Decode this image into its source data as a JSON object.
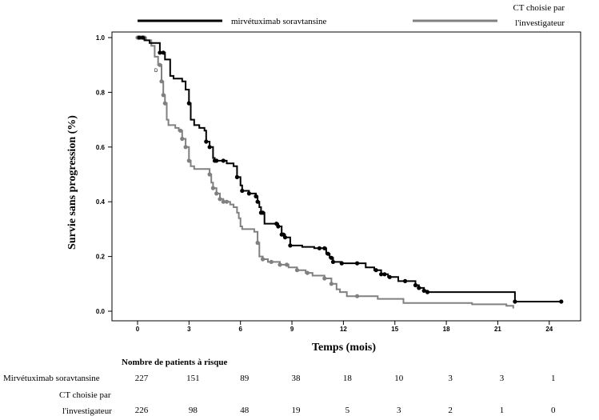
{
  "chart_data": {
    "type": "line",
    "step": true,
    "xlabel": "Temps (mois)",
    "ylabel": "Survie sans progression (%)",
    "xlim": [
      -1,
      25
    ],
    "ylim": [
      0,
      1.0
    ],
    "xticks": [
      "0",
      "3",
      "6",
      "9",
      "12",
      "15",
      "18",
      "21",
      "24"
    ],
    "yticks": [
      "0.0",
      "0.2",
      "0.4",
      "0.6",
      "0.8",
      "1.0"
    ],
    "legend_position": "top",
    "series": [
      {
        "name": "mirvétuximab soravtansine",
        "color": "#000000",
        "points": [
          [
            0,
            1.0
          ],
          [
            0.4,
            0.99
          ],
          [
            0.7,
            0.98
          ],
          [
            1.3,
            0.97
          ],
          [
            1.3,
            0.945
          ],
          [
            1.6,
            0.92
          ],
          [
            1.9,
            0.86
          ],
          [
            2.1,
            0.85
          ],
          [
            2.6,
            0.84
          ],
          [
            2.8,
            0.81
          ],
          [
            3.0,
            0.76
          ],
          [
            3.1,
            0.7
          ],
          [
            3.3,
            0.68
          ],
          [
            3.6,
            0.67
          ],
          [
            3.9,
            0.66
          ],
          [
            4.0,
            0.62
          ],
          [
            4.2,
            0.6
          ],
          [
            4.4,
            0.56
          ],
          [
            4.5,
            0.55
          ],
          [
            5.2,
            0.54
          ],
          [
            5.6,
            0.53
          ],
          [
            5.8,
            0.49
          ],
          [
            6.0,
            0.46
          ],
          [
            6.1,
            0.44
          ],
          [
            6.5,
            0.43
          ],
          [
            6.9,
            0.42
          ],
          [
            7.0,
            0.4
          ],
          [
            7.1,
            0.38
          ],
          [
            7.2,
            0.36
          ],
          [
            7.4,
            0.32
          ],
          [
            8.2,
            0.31
          ],
          [
            8.4,
            0.28
          ],
          [
            8.6,
            0.27
          ],
          [
            8.9,
            0.24
          ],
          [
            9.6,
            0.235
          ],
          [
            10.3,
            0.23
          ],
          [
            11.0,
            0.21
          ],
          [
            11.2,
            0.195
          ],
          [
            11.4,
            0.18
          ],
          [
            11.9,
            0.175
          ],
          [
            13.3,
            0.16
          ],
          [
            13.8,
            0.15
          ],
          [
            14.2,
            0.135
          ],
          [
            14.6,
            0.125
          ],
          [
            15.2,
            0.11
          ],
          [
            16.2,
            0.095
          ],
          [
            16.4,
            0.085
          ],
          [
            16.7,
            0.075
          ],
          [
            16.9,
            0.07
          ],
          [
            22.0,
            0.07
          ],
          [
            22.0,
            0.035
          ],
          [
            24.7,
            0.035
          ]
        ],
        "censor_x": [
          0.1,
          0.3,
          1.3,
          1.5,
          3.0,
          4.0,
          4.2,
          4.5,
          4.6,
          5.0,
          5.8,
          6.1,
          6.5,
          6.9,
          7.0,
          7.2,
          7.3,
          8.1,
          8.2,
          8.4,
          8.5,
          8.6,
          8.9,
          10.6,
          10.9,
          11.1,
          11.3,
          11.4,
          11.9,
          12.8,
          13.9,
          14.2,
          14.4,
          14.7,
          15.6,
          16.2,
          16.4,
          16.7,
          16.9,
          22.0,
          24.7
        ]
      },
      {
        "name": "CT choisie par l'investigateur",
        "color": "#808080",
        "points": [
          [
            0,
            1.0
          ],
          [
            0.5,
            0.99
          ],
          [
            0.8,
            0.97
          ],
          [
            1.0,
            0.93
          ],
          [
            1.2,
            0.9
          ],
          [
            1.4,
            0.84
          ],
          [
            1.5,
            0.79
          ],
          [
            1.6,
            0.76
          ],
          [
            1.7,
            0.7
          ],
          [
            1.8,
            0.68
          ],
          [
            2.2,
            0.67
          ],
          [
            2.4,
            0.66
          ],
          [
            2.6,
            0.63
          ],
          [
            2.8,
            0.6
          ],
          [
            3.0,
            0.55
          ],
          [
            3.1,
            0.53
          ],
          [
            3.3,
            0.52
          ],
          [
            4.2,
            0.5
          ],
          [
            4.3,
            0.47
          ],
          [
            4.4,
            0.45
          ],
          [
            4.6,
            0.43
          ],
          [
            4.8,
            0.41
          ],
          [
            5.0,
            0.4
          ],
          [
            5.4,
            0.39
          ],
          [
            5.6,
            0.38
          ],
          [
            5.8,
            0.36
          ],
          [
            5.9,
            0.34
          ],
          [
            6.0,
            0.31
          ],
          [
            6.1,
            0.3
          ],
          [
            6.8,
            0.29
          ],
          [
            7.0,
            0.25
          ],
          [
            7.1,
            0.2
          ],
          [
            7.3,
            0.19
          ],
          [
            7.6,
            0.18
          ],
          [
            8.3,
            0.17
          ],
          [
            8.8,
            0.16
          ],
          [
            9.3,
            0.15
          ],
          [
            9.8,
            0.14
          ],
          [
            10.2,
            0.13
          ],
          [
            10.9,
            0.12
          ],
          [
            11.3,
            0.1
          ],
          [
            11.6,
            0.08
          ],
          [
            11.8,
            0.07
          ],
          [
            12.2,
            0.055
          ],
          [
            14.0,
            0.045
          ],
          [
            15.5,
            0.03
          ],
          [
            19.5,
            0.025
          ],
          [
            21.5,
            0.02
          ],
          [
            21.9,
            0.01
          ]
        ],
        "censor_x": [
          0,
          0.2,
          0.4,
          1.3,
          1.4,
          1.5,
          1.6,
          2.5,
          2.6,
          2.8,
          3.0,
          4.2,
          4.4,
          4.6,
          4.8,
          5.0,
          5.2,
          7.0,
          7.3,
          7.8,
          8.3,
          8.7,
          9.3,
          9.9,
          10.9,
          11.3,
          12.8
        ]
      }
    ],
    "risk_table": {
      "title": "Nombre de patients à risque",
      "rows": [
        {
          "label": "Mirvétuximab soravtansine",
          "values": [
            "227",
            "151",
            "89",
            "38",
            "18",
            "10",
            "3",
            "3",
            "1"
          ]
        },
        {
          "label_line1": "CT choisie par",
          "label_line2": "l'investigateur",
          "values": [
            "226",
            "98",
            "48",
            "19",
            "5",
            "3",
            "2",
            "1",
            "0"
          ]
        }
      ]
    }
  },
  "legend": {
    "series1": "mirvétuximab soravtansine",
    "series2_line1": "CT choisie par",
    "series2_line2": "l'investigateur"
  },
  "stray_mark": "D"
}
